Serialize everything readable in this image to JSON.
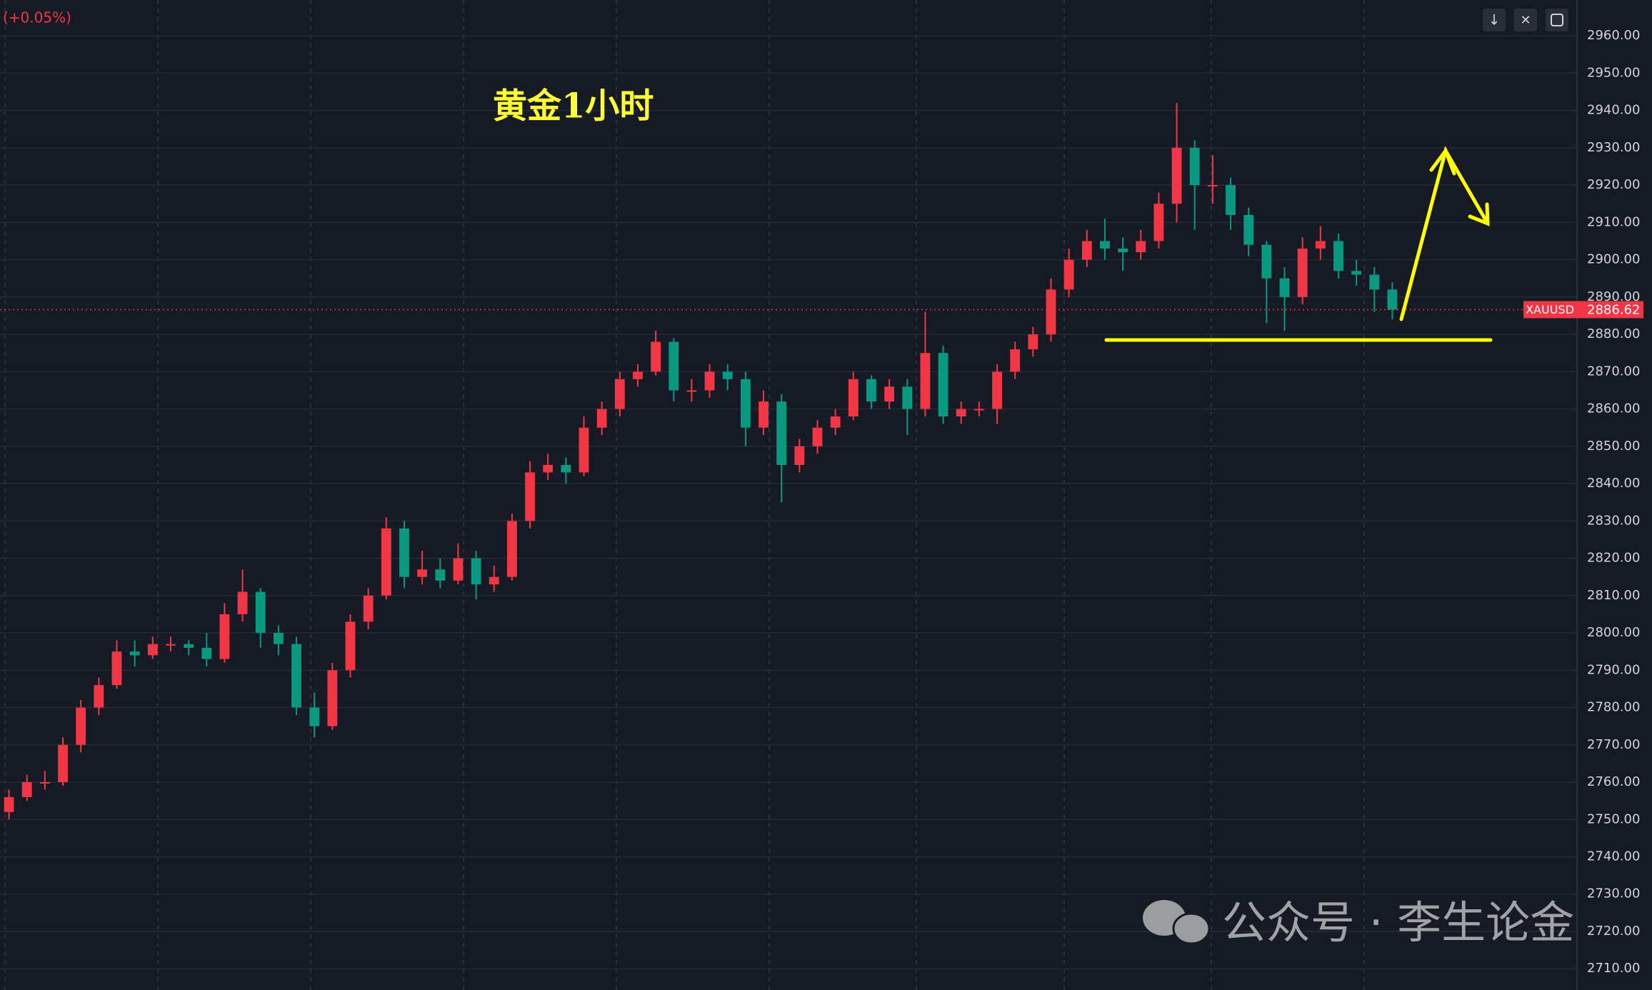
{
  "chart_data": {
    "type": "candlestick",
    "title": "黄金1小时",
    "change_label": "(+0.05%)",
    "watermark": "公众号 · 李生论金",
    "symbol": "XAUUSD",
    "last_price": 2886.62,
    "up_color": "#f23645",
    "down_color": "#089981",
    "grid": true,
    "ylim": [
      2704.3,
      2969.6
    ],
    "yticks": [
      {
        "value": 2710,
        "label": "2710.00"
      },
      {
        "value": 2720,
        "label": "2720.00"
      },
      {
        "value": 2730,
        "label": "2730.00"
      },
      {
        "value": 2740,
        "label": "2740.00"
      },
      {
        "value": 2750,
        "label": "2750.00"
      },
      {
        "value": 2760,
        "label": "2760.00"
      },
      {
        "value": 2770,
        "label": "2770.00"
      },
      {
        "value": 2780,
        "label": "2780.00"
      },
      {
        "value": 2790,
        "label": "2790.00"
      },
      {
        "value": 2800,
        "label": "2800.00"
      },
      {
        "value": 2810,
        "label": "2810.00"
      },
      {
        "value": 2820,
        "label": "2820.00"
      },
      {
        "value": 2830,
        "label": "2830.00"
      },
      {
        "value": 2840,
        "label": "2840.00"
      },
      {
        "value": 2850,
        "label": "2850.00"
      },
      {
        "value": 2860,
        "label": "2860.00"
      },
      {
        "value": 2870,
        "label": "2870.00"
      },
      {
        "value": 2880,
        "label": "2880.00"
      },
      {
        "value": 2890,
        "label": "2890.00"
      },
      {
        "value": 2900,
        "label": "2900.00"
      },
      {
        "value": 2910,
        "label": "2910.00"
      },
      {
        "value": 2920,
        "label": "2920.00"
      },
      {
        "value": 2930,
        "label": "2930.00"
      },
      {
        "value": 2940,
        "label": "2940.00"
      },
      {
        "value": 2950,
        "label": "2950.00"
      },
      {
        "value": 2960,
        "label": "2960.00"
      }
    ],
    "candles": [
      [
        2752,
        2758,
        2750,
        2756
      ],
      [
        2756,
        2762,
        2755,
        2760
      ],
      [
        2760,
        2763,
        2758,
        2760
      ],
      [
        2760,
        2772,
        2759,
        2770
      ],
      [
        2770,
        2782,
        2768,
        2780
      ],
      [
        2780,
        2788,
        2778,
        2786
      ],
      [
        2786,
        2798,
        2785,
        2795
      ],
      [
        2795,
        2798,
        2791,
        2794
      ],
      [
        2794,
        2799,
        2793,
        2797
      ],
      [
        2797,
        2799,
        2795,
        2797
      ],
      [
        2797,
        2798,
        2794,
        2796
      ],
      [
        2796,
        2800,
        2791,
        2793
      ],
      [
        2793,
        2808,
        2792,
        2805
      ],
      [
        2805,
        2817,
        2803,
        2811
      ],
      [
        2811,
        2812,
        2796,
        2800
      ],
      [
        2800,
        2802,
        2794,
        2797
      ],
      [
        2797,
        2799,
        2778,
        2780
      ],
      [
        2780,
        2784,
        2772,
        2775
      ],
      [
        2775,
        2792,
        2774,
        2790
      ],
      [
        2790,
        2805,
        2788,
        2803
      ],
      [
        2803,
        2812,
        2801,
        2810
      ],
      [
        2810,
        2831,
        2809,
        2828
      ],
      [
        2828,
        2830,
        2812,
        2815
      ],
      [
        2815,
        2822,
        2813,
        2817
      ],
      [
        2817,
        2820,
        2812,
        2814
      ],
      [
        2814,
        2824,
        2813,
        2820
      ],
      [
        2820,
        2822,
        2809,
        2813
      ],
      [
        2813,
        2818,
        2811,
        2815
      ],
      [
        2815,
        2832,
        2814,
        2830
      ],
      [
        2830,
        2846,
        2828,
        2843
      ],
      [
        2843,
        2848,
        2841,
        2845
      ],
      [
        2845,
        2847,
        2840,
        2843
      ],
      [
        2843,
        2858,
        2842,
        2855
      ],
      [
        2855,
        2862,
        2853,
        2860
      ],
      [
        2860,
        2870,
        2858,
        2868
      ],
      [
        2868,
        2872,
        2866,
        2870
      ],
      [
        2870,
        2881,
        2869,
        2878
      ],
      [
        2878,
        2879,
        2862,
        2865
      ],
      [
        2865,
        2868,
        2862,
        2865
      ],
      [
        2865,
        2872,
        2863,
        2870
      ],
      [
        2870,
        2872,
        2865,
        2868
      ],
      [
        2868,
        2870,
        2850,
        2855
      ],
      [
        2855,
        2865,
        2853,
        2862
      ],
      [
        2862,
        2864,
        2835,
        2845
      ],
      [
        2845,
        2852,
        2843,
        2850
      ],
      [
        2850,
        2857,
        2848,
        2855
      ],
      [
        2855,
        2860,
        2853,
        2858
      ],
      [
        2858,
        2870,
        2857,
        2868
      ],
      [
        2868,
        2869,
        2860,
        2862
      ],
      [
        2862,
        2868,
        2860,
        2866
      ],
      [
        2866,
        2868,
        2853,
        2860
      ],
      [
        2860,
        2886,
        2858,
        2875
      ],
      [
        2875,
        2877,
        2856,
        2858
      ],
      [
        2858,
        2862,
        2856,
        2860
      ],
      [
        2860,
        2862,
        2858,
        2860
      ],
      [
        2860,
        2872,
        2856,
        2870
      ],
      [
        2870,
        2878,
        2868,
        2876
      ],
      [
        2876,
        2882,
        2874,
        2880
      ],
      [
        2880,
        2895,
        2878,
        2892
      ],
      [
        2892,
        2903,
        2890,
        2900
      ],
      [
        2900,
        2908,
        2898,
        2905
      ],
      [
        2905,
        2911,
        2900,
        2903
      ],
      [
        2903,
        2906,
        2897,
        2902
      ],
      [
        2902,
        2908,
        2900,
        2905
      ],
      [
        2905,
        2918,
        2903,
        2915
      ],
      [
        2915,
        2942,
        2910,
        2930
      ],
      [
        2930,
        2932,
        2908,
        2920
      ],
      [
        2920,
        2928,
        2915,
        2920
      ],
      [
        2920,
        2922,
        2908,
        2912
      ],
      [
        2912,
        2914,
        2901,
        2904
      ],
      [
        2904,
        2905,
        2883,
        2895
      ],
      [
        2895,
        2898,
        2881,
        2890
      ],
      [
        2890,
        2906,
        2888,
        2903
      ],
      [
        2903,
        2909,
        2900,
        2905
      ],
      [
        2905,
        2907,
        2895,
        2897
      ],
      [
        2897,
        2900,
        2893,
        2896
      ],
      [
        2896,
        2898,
        2886,
        2892
      ],
      [
        2892,
        2894,
        2884,
        2886.62
      ]
    ]
  }
}
